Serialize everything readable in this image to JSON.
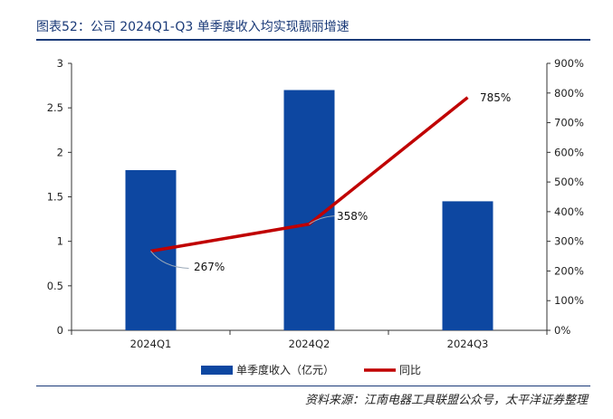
{
  "header": {
    "title": "图表52：公司 2024Q1-Q3 单季度收入均实现靓丽增速"
  },
  "footer": {
    "source": "资料来源：江南电器工具联盟公众号，太平洋证券整理"
  },
  "colors": {
    "bar": "#0d47a1",
    "line": "#c00000",
    "title": "#1a3a78"
  },
  "chart_data": {
    "type": "bar",
    "categories": [
      "2024Q1",
      "2024Q2",
      "2024Q3"
    ],
    "series": [
      {
        "name": "单季度收入（亿元）",
        "type": "bar",
        "axis": "left",
        "values": [
          1.8,
          2.7,
          1.45
        ]
      },
      {
        "name": "同比",
        "type": "line",
        "axis": "right",
        "values": [
          2.67,
          3.58,
          7.85
        ],
        "labels": [
          "267%",
          "358%",
          "785%"
        ]
      }
    ],
    "left_axis": {
      "ylim": [
        0,
        3
      ],
      "ticks": [
        "0",
        "0.5",
        "1",
        "1.5",
        "2",
        "2.5",
        "3"
      ]
    },
    "right_axis": {
      "ylim": [
        0,
        9
      ],
      "ticks": [
        "0%",
        "100%",
        "200%",
        "300%",
        "400%",
        "500%",
        "600%",
        "700%",
        "800%",
        "900%"
      ]
    },
    "grid": false,
    "legend": "bottom"
  }
}
